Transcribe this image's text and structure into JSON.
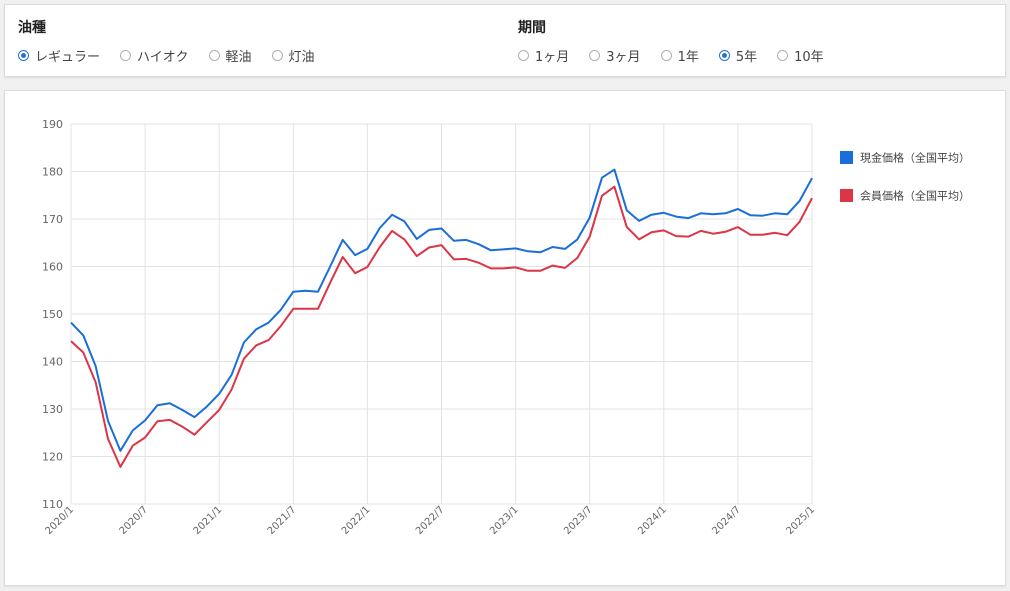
{
  "filters": {
    "fuel": {
      "title": "油種",
      "options": [
        {
          "label": "レギュラー",
          "selected": true
        },
        {
          "label": "ハイオク",
          "selected": false
        },
        {
          "label": "軽油",
          "selected": false
        },
        {
          "label": "灯油",
          "selected": false
        }
      ]
    },
    "period": {
      "title": "期間",
      "options": [
        {
          "label": "1ヶ月",
          "selected": false
        },
        {
          "label": "3ヶ月",
          "selected": false
        },
        {
          "label": "1年",
          "selected": false
        },
        {
          "label": "5年",
          "selected": true
        },
        {
          "label": "10年",
          "selected": false
        }
      ]
    }
  },
  "chart_data": {
    "type": "line",
    "x": [
      "2020/1",
      "2020/2",
      "2020/3",
      "2020/4",
      "2020/5",
      "2020/6",
      "2020/7",
      "2020/8",
      "2020/9",
      "2020/10",
      "2020/11",
      "2020/12",
      "2021/1",
      "2021/2",
      "2021/3",
      "2021/4",
      "2021/5",
      "2021/6",
      "2021/7",
      "2021/8",
      "2021/9",
      "2021/10",
      "2021/11",
      "2021/12",
      "2022/1",
      "2022/2",
      "2022/3",
      "2022/4",
      "2022/5",
      "2022/6",
      "2022/7",
      "2022/8",
      "2022/9",
      "2022/10",
      "2022/11",
      "2022/12",
      "2023/1",
      "2023/2",
      "2023/3",
      "2023/4",
      "2023/5",
      "2023/6",
      "2023/7",
      "2023/8",
      "2023/9",
      "2023/10",
      "2023/11",
      "2023/12",
      "2024/1",
      "2024/2",
      "2024/3",
      "2024/4",
      "2024/5",
      "2024/6",
      "2024/7",
      "2024/8",
      "2024/9",
      "2024/10",
      "2024/11",
      "2024/12",
      "2025/1"
    ],
    "xticks": [
      "2020/1",
      "2020/7",
      "2021/1",
      "2021/7",
      "2022/1",
      "2022/7",
      "2023/1",
      "2023/7",
      "2024/1",
      "2024/7",
      "2025/1"
    ],
    "series": [
      {
        "name": "現金価格（全国平均）",
        "color": "#1a6ed8",
        "values": [
          148.2,
          145.5,
          139.0,
          127.5,
          121.2,
          125.5,
          127.6,
          130.8,
          131.2,
          129.8,
          128.3,
          130.5,
          133.2,
          137.2,
          144.0,
          146.8,
          148.2,
          150.9,
          154.7,
          154.9,
          154.7,
          160.1,
          165.6,
          162.4,
          163.7,
          168.1,
          170.9,
          169.5,
          165.8,
          167.7,
          168.0,
          165.4,
          165.6,
          164.7,
          163.4,
          163.6,
          163.8,
          163.2,
          163.0,
          164.1,
          163.7,
          165.7,
          170.3,
          178.7,
          180.4,
          171.8,
          169.6,
          170.9,
          171.3,
          170.5,
          170.2,
          171.2,
          171.0,
          171.2,
          172.1,
          170.8,
          170.7,
          171.2,
          171.0,
          173.8,
          178.6
        ]
      },
      {
        "name": "会員価格（全国平均）",
        "color": "#dc3545",
        "values": [
          144.3,
          141.9,
          135.6,
          123.7,
          117.8,
          122.3,
          124.0,
          127.4,
          127.7,
          126.3,
          124.6,
          127.2,
          129.8,
          134.1,
          140.6,
          143.4,
          144.5,
          147.5,
          151.1,
          151.1,
          151.1,
          156.7,
          162.0,
          158.6,
          159.9,
          164.1,
          167.5,
          165.7,
          162.2,
          164.0,
          164.5,
          161.5,
          161.6,
          160.8,
          159.6,
          159.6,
          159.8,
          159.1,
          159.1,
          160.2,
          159.7,
          161.8,
          166.3,
          174.9,
          176.8,
          168.3,
          165.7,
          167.2,
          167.6,
          166.4,
          166.3,
          167.5,
          166.9,
          167.3,
          168.3,
          166.7,
          166.7,
          167.1,
          166.6,
          169.4,
          174.4
        ]
      }
    ],
    "ylim": [
      110,
      190
    ],
    "yticks": [
      110,
      120,
      130,
      140,
      150,
      160,
      170,
      180,
      190
    ],
    "grid": true,
    "legend": "right"
  }
}
